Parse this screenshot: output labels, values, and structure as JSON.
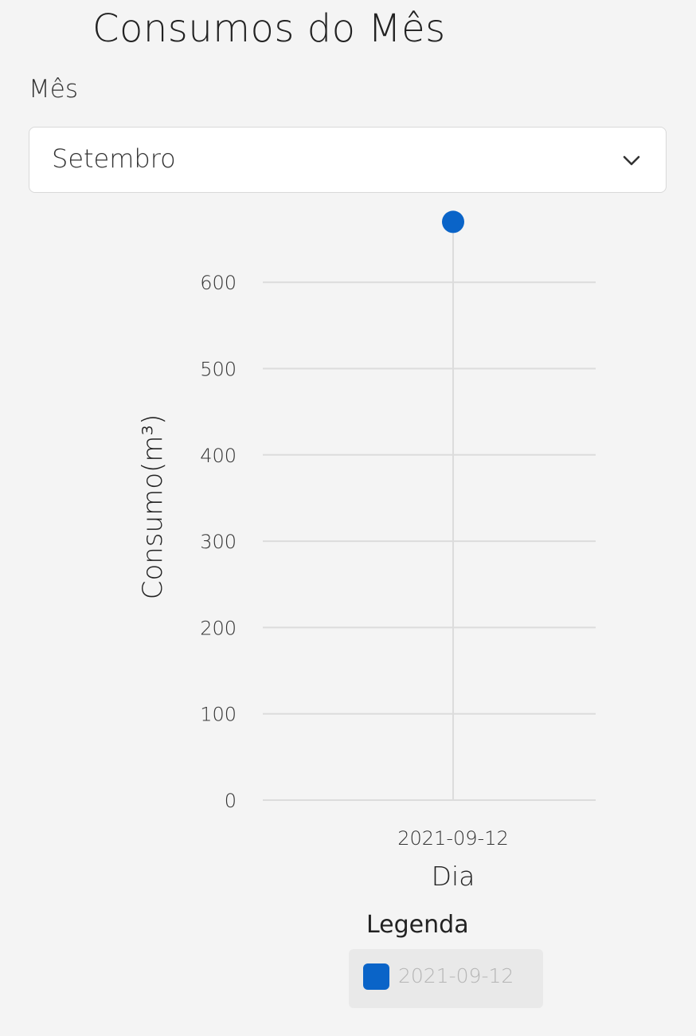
{
  "page": {
    "title": "Consumos do Mês"
  },
  "month_select": {
    "label": "Mês",
    "selected": "Setembro",
    "icon": "chevron-down-icon"
  },
  "chart_data": {
    "type": "line",
    "x": [
      "2021-09-12"
    ],
    "series": [
      {
        "name": "2021-09-12",
        "values": [
          670
        ],
        "color": "#0a64c8"
      }
    ],
    "xlabel": "Dia",
    "ylabel": "Consumo(m³)",
    "yticks": [
      0,
      100,
      200,
      300,
      400,
      500,
      600
    ],
    "ylim": [
      0,
      700
    ],
    "grid": true,
    "legend_position": "bottom"
  },
  "legend": {
    "title": "Legenda",
    "items": [
      {
        "label": "2021-09-12",
        "color": "#0a64c8"
      }
    ]
  },
  "colors": {
    "background": "#f4f4f4",
    "accent": "#0a64c8",
    "grid": "#dcdcdc"
  }
}
